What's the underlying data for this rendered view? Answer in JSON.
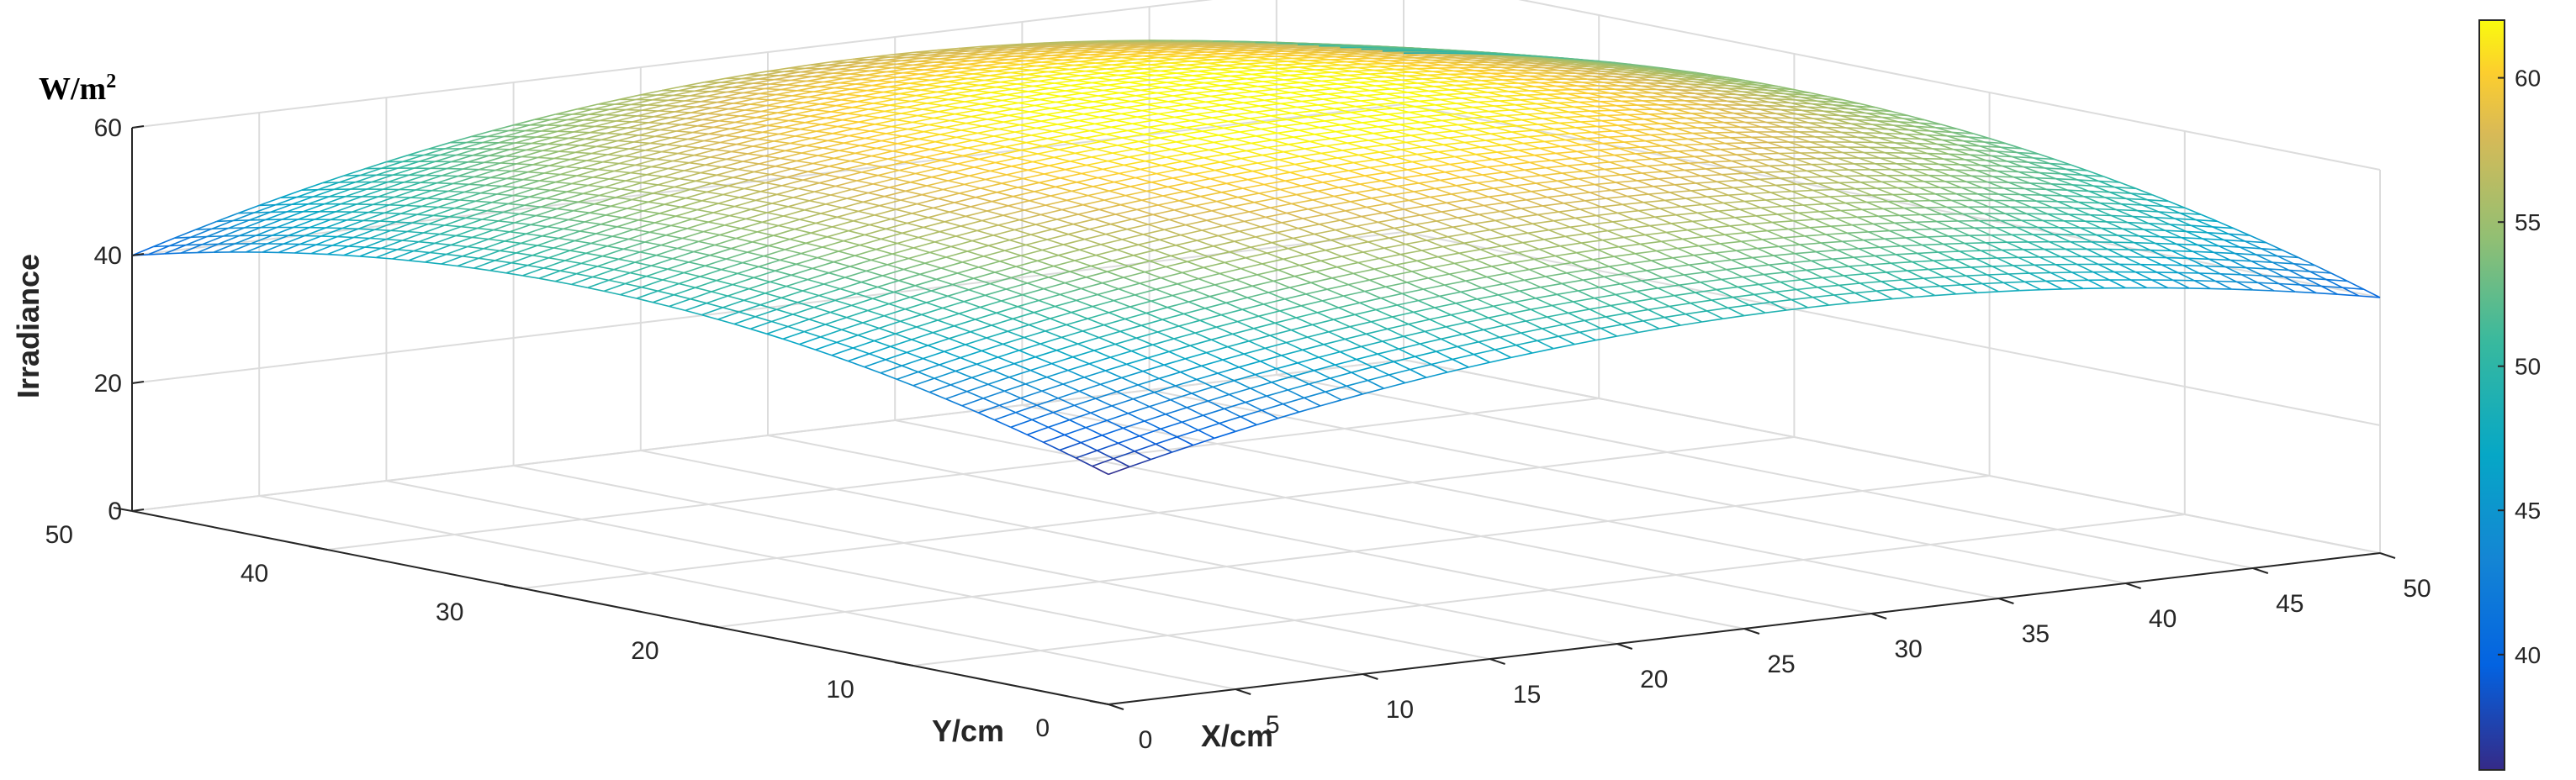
{
  "chart_data": {
    "type": "surface",
    "unit_label": "W/m",
    "unit_superscript": "2",
    "zlabel": "Irradiance",
    "xlabel": "X/cm",
    "ylabel": "Y/cm",
    "xlim": [
      0,
      50
    ],
    "ylim": [
      0,
      50
    ],
    "zlim": [
      0,
      60
    ],
    "x_ticks": [
      "0",
      "5",
      "10",
      "15",
      "20",
      "25",
      "30",
      "35",
      "40",
      "45",
      "50"
    ],
    "y_ticks": [
      "0",
      "10",
      "20",
      "30",
      "40",
      "50"
    ],
    "z_ticks": [
      "0",
      "20",
      "40",
      "60"
    ],
    "grid": true,
    "colormap": "parula",
    "colorbar": {
      "position": "right",
      "range": [
        36,
        62
      ],
      "ticks": [
        "40",
        "45",
        "50",
        "55",
        "60"
      ]
    },
    "surface_samples": [
      {
        "x": 0,
        "y": 0,
        "z": 36
      },
      {
        "x": 50,
        "y": 0,
        "z": 40
      },
      {
        "x": 0,
        "y": 50,
        "z": 40
      },
      {
        "x": 50,
        "y": 50,
        "z": 48
      },
      {
        "x": 25,
        "y": 25,
        "z": 62
      },
      {
        "x": 25,
        "y": 0,
        "z": 49
      },
      {
        "x": 0,
        "y": 25,
        "z": 49
      },
      {
        "x": 50,
        "y": 25,
        "z": 54
      },
      {
        "x": 25,
        "y": 50,
        "z": 57
      }
    ]
  }
}
